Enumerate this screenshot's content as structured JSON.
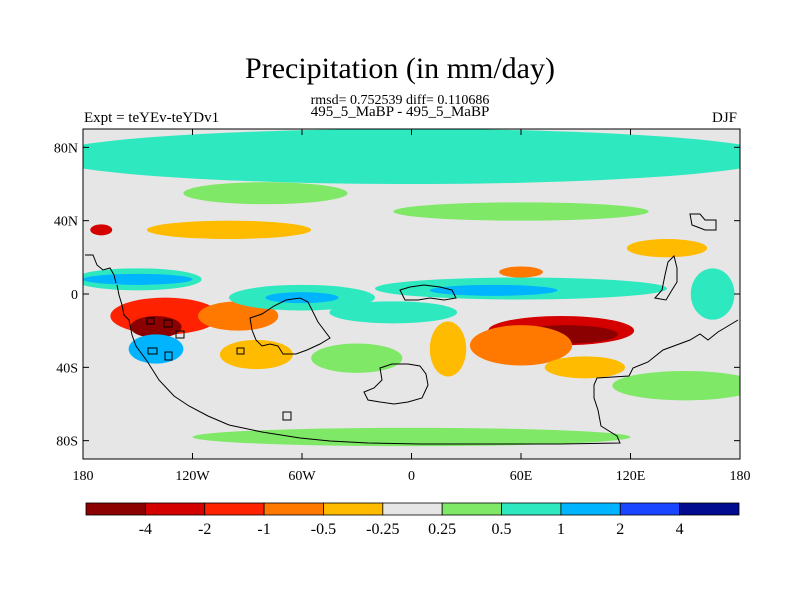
{
  "title": "Precipitation (in mm/day)",
  "stats": "rmsd= 0.752539 diff= 0.110686",
  "experiment_label": "Expt = teYEv-teYDv1",
  "case_label": "495_5_MaBP - 495_5_MaBP",
  "season": "DJF",
  "chart_data": {
    "type": "heatmap",
    "projection": "cylindrical-equidistant",
    "lon_range": [
      -180,
      180
    ],
    "lat_range": [
      -90,
      90
    ],
    "x_ticks": [
      {
        "lon": -180,
        "label": "180"
      },
      {
        "lon": -120,
        "label": "120W"
      },
      {
        "lon": -60,
        "label": "60W"
      },
      {
        "lon": 0,
        "label": "0"
      },
      {
        "lon": 60,
        "label": "60E"
      },
      {
        "lon": 120,
        "label": "120E"
      },
      {
        "lon": 180,
        "label": "180"
      }
    ],
    "y_ticks": [
      {
        "lat": 80,
        "label": "80N"
      },
      {
        "lat": 40,
        "label": "40N"
      },
      {
        "lat": 0,
        "label": "0"
      },
      {
        "lat": -40,
        "label": "40S"
      },
      {
        "lat": -80,
        "label": "80S"
      }
    ],
    "colorbar": {
      "colors": [
        "#8b0000",
        "#d40000",
        "#ff2200",
        "#ff7800",
        "#ffbb00",
        "#e6e6e6",
        "#7fe866",
        "#2ee8c0",
        "#00b4ff",
        "#1a46ff",
        "#000b8f"
      ],
      "labels": [
        "-4",
        "-2",
        "-1",
        "-0.5",
        "-0.25",
        "0.25",
        "0.5",
        "1",
        "2",
        "4"
      ]
    },
    "anomaly_fields": [
      {
        "lon": 82,
        "lat": -20,
        "rx": 40,
        "ry": 8,
        "value": -2.6
      },
      {
        "lon": 85,
        "lat": -22,
        "rx": 28,
        "ry": 5,
        "value": -4.5
      },
      {
        "lon": 60,
        "lat": -28,
        "rx": 28,
        "ry": 11,
        "value": -0.7
      },
      {
        "lon": 95,
        "lat": -40,
        "rx": 22,
        "ry": 6,
        "value": -0.4
      },
      {
        "lon": -135,
        "lat": -12,
        "rx": 30,
        "ry": 10,
        "value": -1.6
      },
      {
        "lon": -140,
        "lat": -18,
        "rx": 14,
        "ry": 6,
        "value": -4.5
      },
      {
        "lon": -95,
        "lat": -12,
        "rx": 22,
        "ry": 8,
        "value": -0.7
      },
      {
        "lon": -85,
        "lat": -33,
        "rx": 20,
        "ry": 8,
        "value": -0.3
      },
      {
        "lon": -170,
        "lat": 35,
        "rx": 6,
        "ry": 3,
        "value": -2.6
      },
      {
        "lon": -100,
        "lat": 35,
        "rx": 45,
        "ry": 5,
        "value": -0.3
      },
      {
        "lon": 20,
        "lat": 4,
        "rx": 15,
        "ry": 3,
        "value": -1.2
      },
      {
        "lon": 60,
        "lat": 12,
        "rx": 12,
        "ry": 3,
        "value": -0.7
      },
      {
        "lon": 140,
        "lat": 25,
        "rx": 22,
        "ry": 5,
        "value": -0.3
      },
      {
        "lon": 20,
        "lat": -30,
        "rx": 10,
        "ry": 15,
        "value": -0.3
      },
      {
        "lon": 0,
        "lat": 75,
        "rx": 200,
        "ry": 15,
        "value": 0.8
      },
      {
        "lon": 0,
        "lat": -78,
        "rx": 120,
        "ry": 5,
        "value": 0.4
      },
      {
        "lon": -150,
        "lat": 8,
        "rx": 35,
        "ry": 6,
        "value": 0.8
      },
      {
        "lon": -150,
        "lat": 8,
        "rx": 30,
        "ry": 3,
        "value": 1.5
      },
      {
        "lon": -60,
        "lat": -2,
        "rx": 40,
        "ry": 7,
        "value": 0.9
      },
      {
        "lon": -60,
        "lat": -2,
        "rx": 20,
        "ry": 3,
        "value": 1.8
      },
      {
        "lon": 60,
        "lat": 3,
        "rx": 80,
        "ry": 6,
        "value": 0.9
      },
      {
        "lon": 45,
        "lat": 2,
        "rx": 35,
        "ry": 3,
        "value": 1.6
      },
      {
        "lon": -10,
        "lat": -10,
        "rx": 35,
        "ry": 6,
        "value": 0.9
      },
      {
        "lon": -140,
        "lat": -30,
        "rx": 15,
        "ry": 8,
        "value": 1.2
      },
      {
        "lon": -30,
        "lat": -35,
        "rx": 25,
        "ry": 8,
        "value": 0.4
      },
      {
        "lon": -80,
        "lat": 55,
        "rx": 45,
        "ry": 6,
        "value": 0.4
      },
      {
        "lon": 60,
        "lat": 45,
        "rx": 70,
        "ry": 5,
        "value": 0.4
      },
      {
        "lon": 150,
        "lat": -50,
        "rx": 40,
        "ry": 8,
        "value": 0.4
      },
      {
        "lon": 165,
        "lat": 0,
        "rx": 12,
        "ry": 14,
        "value": 0.9
      }
    ],
    "grid": false
  }
}
